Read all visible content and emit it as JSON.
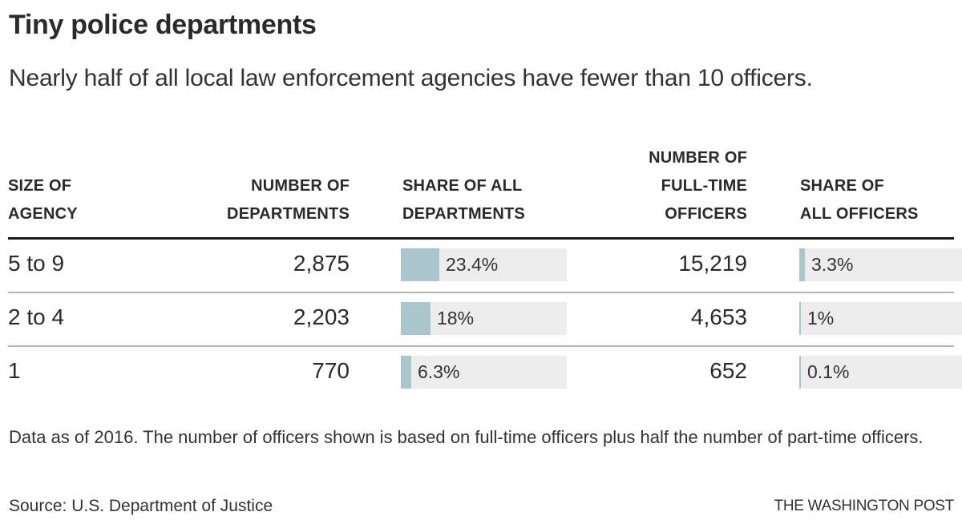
{
  "chart_data": {
    "type": "table",
    "title": "Tiny police departments",
    "subtitle": "Nearly half of all local law enforcement agencies have fewer than 10 officers.",
    "columns": [
      {
        "key": "size",
        "label_lines": [
          "SIZE OF",
          "AGENCY"
        ]
      },
      {
        "key": "departments",
        "label_lines": [
          "NUMBER OF",
          "DEPARTMENTS"
        ]
      },
      {
        "key": "dept_share",
        "label_lines": [
          "SHARE OF ALL",
          "DEPARTMENTS"
        ]
      },
      {
        "key": "officers",
        "label_lines": [
          "NUMBER OF",
          "FULL-TIME",
          "OFFICERS"
        ]
      },
      {
        "key": "officer_share",
        "label_lines": [
          "SHARE OF",
          "ALL OFFICERS"
        ]
      }
    ],
    "rows": [
      {
        "size": "5 to 9",
        "departments": "2,875",
        "dept_share": 23.4,
        "dept_share_label": "23.4%",
        "officers": "15,219",
        "officer_share": 3.3,
        "officer_share_label": "3.3%"
      },
      {
        "size": "2 to 4",
        "departments": "2,203",
        "dept_share": 18,
        "dept_share_label": "18%",
        "officers": "4,653",
        "officer_share": 1,
        "officer_share_label": "1%"
      },
      {
        "size": "1",
        "departments": "770",
        "dept_share": 6.3,
        "dept_share_label": "6.3%",
        "officers": "652",
        "officer_share": 0.1,
        "officer_share_label": "0.1%"
      }
    ],
    "bar_scale_max_percent": 100,
    "note": "Data as of 2016. The number of officers shown is based on full-time officers plus half the number of part-time officers.",
    "source": "Source: U.S. Department of Justice",
    "credit": "THE WASHINGTON POST",
    "colors": {
      "bar_fill": "#a9c6cc",
      "bar_track": "#ededed",
      "text": "#2a2a2a"
    }
  }
}
